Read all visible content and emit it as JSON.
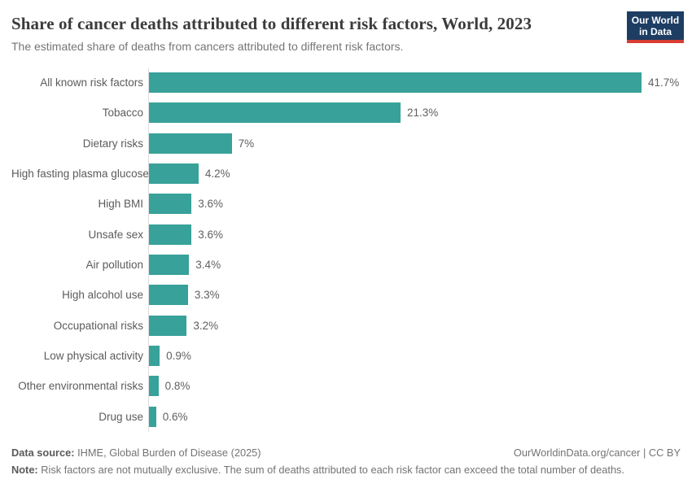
{
  "header": {
    "title": "Share of cancer deaths attributed to different risk factors, World, 2023",
    "subtitle": "The estimated share of deaths from cancers attributed to different risk factors."
  },
  "logo": {
    "line1": "Our World",
    "line2": "in Data",
    "background_color": "#1d3d63",
    "underline_color": "#d93d32"
  },
  "chart_data": {
    "type": "bar",
    "orientation": "horizontal",
    "title": "Share of cancer deaths attributed to different risk factors, World, 2023",
    "categories": [
      "All known risk factors",
      "Tobacco",
      "Dietary risks",
      "High fasting plasma glucose",
      "High BMI",
      "Unsafe sex",
      "Air pollution",
      "High alcohol use",
      "Occupational risks",
      "Low physical activity",
      "Other environmental risks",
      "Drug use"
    ],
    "values": [
      41.7,
      21.3,
      7,
      4.2,
      3.6,
      3.6,
      3.4,
      3.3,
      3.2,
      0.9,
      0.8,
      0.6
    ],
    "value_labels": [
      "41.7%",
      "21.3%",
      "7%",
      "4.2%",
      "3.6%",
      "3.6%",
      "3.4%",
      "3.3%",
      "3.2%",
      "0.9%",
      "0.8%",
      "0.6%"
    ],
    "xlim": [
      0,
      41.7
    ],
    "xlabel": "",
    "ylabel": "",
    "grid": false,
    "legend": false,
    "bar_color": "#38a199",
    "axis_color": "#dedede"
  },
  "footer": {
    "data_source_label": "Data source:",
    "data_source_text": " IHME, Global Burden of Disease (2025)",
    "attribution": "OurWorldinData.org/cancer | CC BY",
    "note_label": "Note:",
    "note_text": " Risk factors are not mutually exclusive. The sum of deaths attributed to each risk factor can exceed the total number of deaths."
  }
}
